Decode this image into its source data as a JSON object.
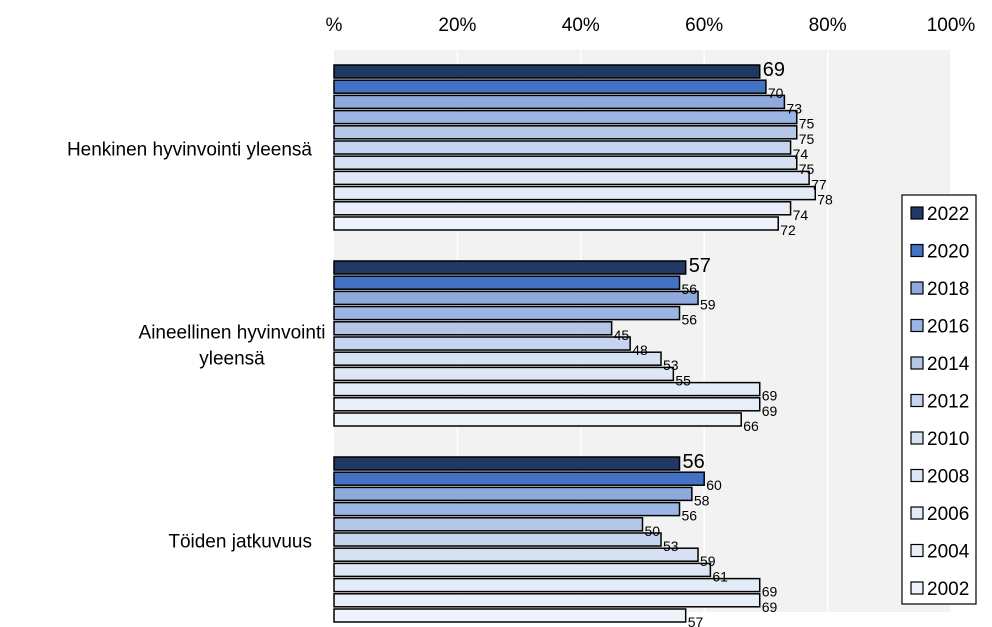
{
  "chart_data": {
    "type": "bar",
    "orientation": "horizontal",
    "categories": [
      "Henkinen hyvinvointi yleensä",
      "Aineellinen hyvinvointi\nyleensä",
      "Töiden jatkuvuus"
    ],
    "series": [
      {
        "name": "2022",
        "values": [
          69,
          57,
          56
        ],
        "color": "#1f3864"
      },
      {
        "name": "2020",
        "values": [
          70,
          56,
          60
        ],
        "color": "#4472c4"
      },
      {
        "name": "2018",
        "values": [
          73,
          59,
          58
        ],
        "color": "#8ea9db"
      },
      {
        "name": "2016",
        "values": [
          75,
          56,
          56
        ],
        "color": "#9bb5e4"
      },
      {
        "name": "2014",
        "values": [
          75,
          45,
          50
        ],
        "color": "#b4c7e7"
      },
      {
        "name": "2012",
        "values": [
          74,
          48,
          53
        ],
        "color": "#c5d5ef"
      },
      {
        "name": "2010",
        "values": [
          75,
          53,
          59
        ],
        "color": "#d6e1f3"
      },
      {
        "name": "2008",
        "values": [
          77,
          55,
          61
        ],
        "color": "#dde7f5"
      },
      {
        "name": "2006",
        "values": [
          78,
          69,
          69
        ],
        "color": "#e3ebf7"
      },
      {
        "name": "2004",
        "values": [
          74,
          69,
          69
        ],
        "color": "#e9eff9"
      },
      {
        "name": "2002",
        "values": [
          72,
          66,
          57
        ],
        "color": "#eef3fb"
      }
    ],
    "x_ticks": [
      "%",
      "20%",
      "40%",
      "60%",
      "80%",
      "100%"
    ],
    "xlim": [
      0,
      100
    ],
    "grid": true,
    "legend_position": "right",
    "plot_background": "#f2f2f2",
    "bar_border_color": "#000000"
  }
}
